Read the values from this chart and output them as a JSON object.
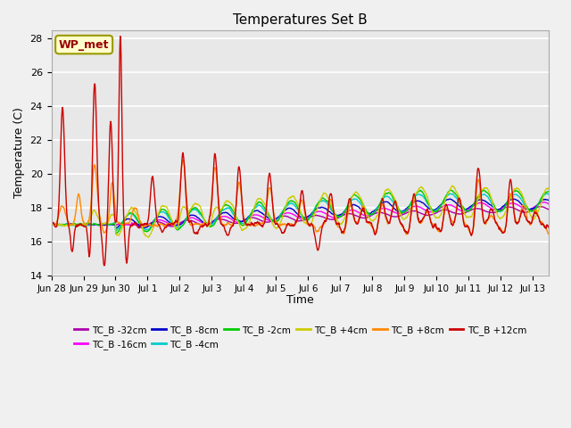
{
  "title": "Temperatures Set B",
  "xlabel": "Time",
  "ylabel": "Temperature (C)",
  "ylim": [
    14,
    28.5
  ],
  "background_color": "#f0f0f0",
  "plot_bg_color": "#e8e8e8",
  "grid_color": "#ffffff",
  "annotation_text": "WP_met",
  "annotation_bg": "#ffffcc",
  "annotation_border": "#999900",
  "annotation_text_color": "#990000",
  "series": [
    {
      "label": "TC_B -32cm",
      "color": "#aa00aa"
    },
    {
      "label": "TC_B -16cm",
      "color": "#ff00ff"
    },
    {
      "label": "TC_B -8cm",
      "color": "#0000cc"
    },
    {
      "label": "TC_B -4cm",
      "color": "#00cccc"
    },
    {
      "label": "TC_B -2cm",
      "color": "#00cc00"
    },
    {
      "label": "TC_B +4cm",
      "color": "#cccc00"
    },
    {
      "label": "TC_B +8cm",
      "color": "#ff8800"
    },
    {
      "label": "TC_B +12cm",
      "color": "#cc0000"
    }
  ],
  "tick_labels": [
    "Jun 28",
    "Jun 29",
    "Jun 30",
    "Jul 1",
    "Jul 2",
    "Jul 3",
    "Jul 4",
    "Jul 5",
    "Jul 6",
    "Jul 7",
    "Jul 8",
    "Jul 9",
    "Jul 10",
    "Jul 11",
    "Jul 12",
    "Jul 13"
  ],
  "yticks": [
    14,
    16,
    18,
    20,
    22,
    24,
    26,
    28
  ]
}
